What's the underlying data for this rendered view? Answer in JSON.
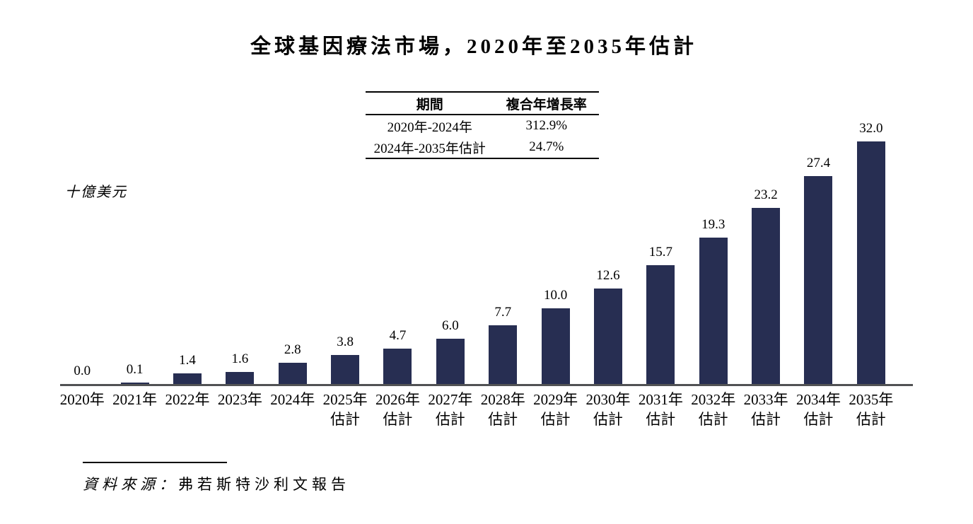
{
  "title": "全球基因療法市場，2020年至2035年估計",
  "unit_label": "十億美元",
  "cagr_table": {
    "headers": [
      "期間",
      "複合年增長率"
    ],
    "rows": [
      [
        "2020年-2024年",
        "312.9%"
      ],
      [
        "2024年-2035年估計",
        "24.7%"
      ]
    ]
  },
  "source": {
    "prefix": "資料來源：",
    "report": "弗若斯特沙利文報告"
  },
  "colors": {
    "bar": "#272E52",
    "axis": "#515254",
    "text": "#000000"
  },
  "chart_data": {
    "type": "bar",
    "title": "全球基因療法市場，2020年至2035年估計",
    "ylabel": "十億美元",
    "categories": [
      "2020年",
      "2021年",
      "2022年",
      "2023年",
      "2024年",
      "2025年估計",
      "2026年估計",
      "2027年估計",
      "2028年估計",
      "2029年估計",
      "2030年估計",
      "2031年估計",
      "2032年估計",
      "2033年估計",
      "2034年估計",
      "2035年估計"
    ],
    "values": [
      0.0,
      0.1,
      1.4,
      1.6,
      2.8,
      3.8,
      4.7,
      6.0,
      7.7,
      10.0,
      12.6,
      15.7,
      19.3,
      23.2,
      27.4,
      32.0
    ],
    "value_labels": [
      "0.0",
      "0.1",
      "1.4",
      "1.6",
      "2.8",
      "3.8",
      "4.7",
      "6.0",
      "7.7",
      "10.0",
      "12.6",
      "15.7",
      "19.3",
      "23.2",
      "27.4",
      "32.0"
    ],
    "ylim": [
      0,
      32
    ],
    "grid": false,
    "legend": "none",
    "estimate_suffix": "估計",
    "cagr_annotations": [
      {
        "period": "2020年-2024年",
        "cagr": "312.9%"
      },
      {
        "period": "2024年-2035年估計",
        "cagr": "24.7%"
      }
    ]
  }
}
